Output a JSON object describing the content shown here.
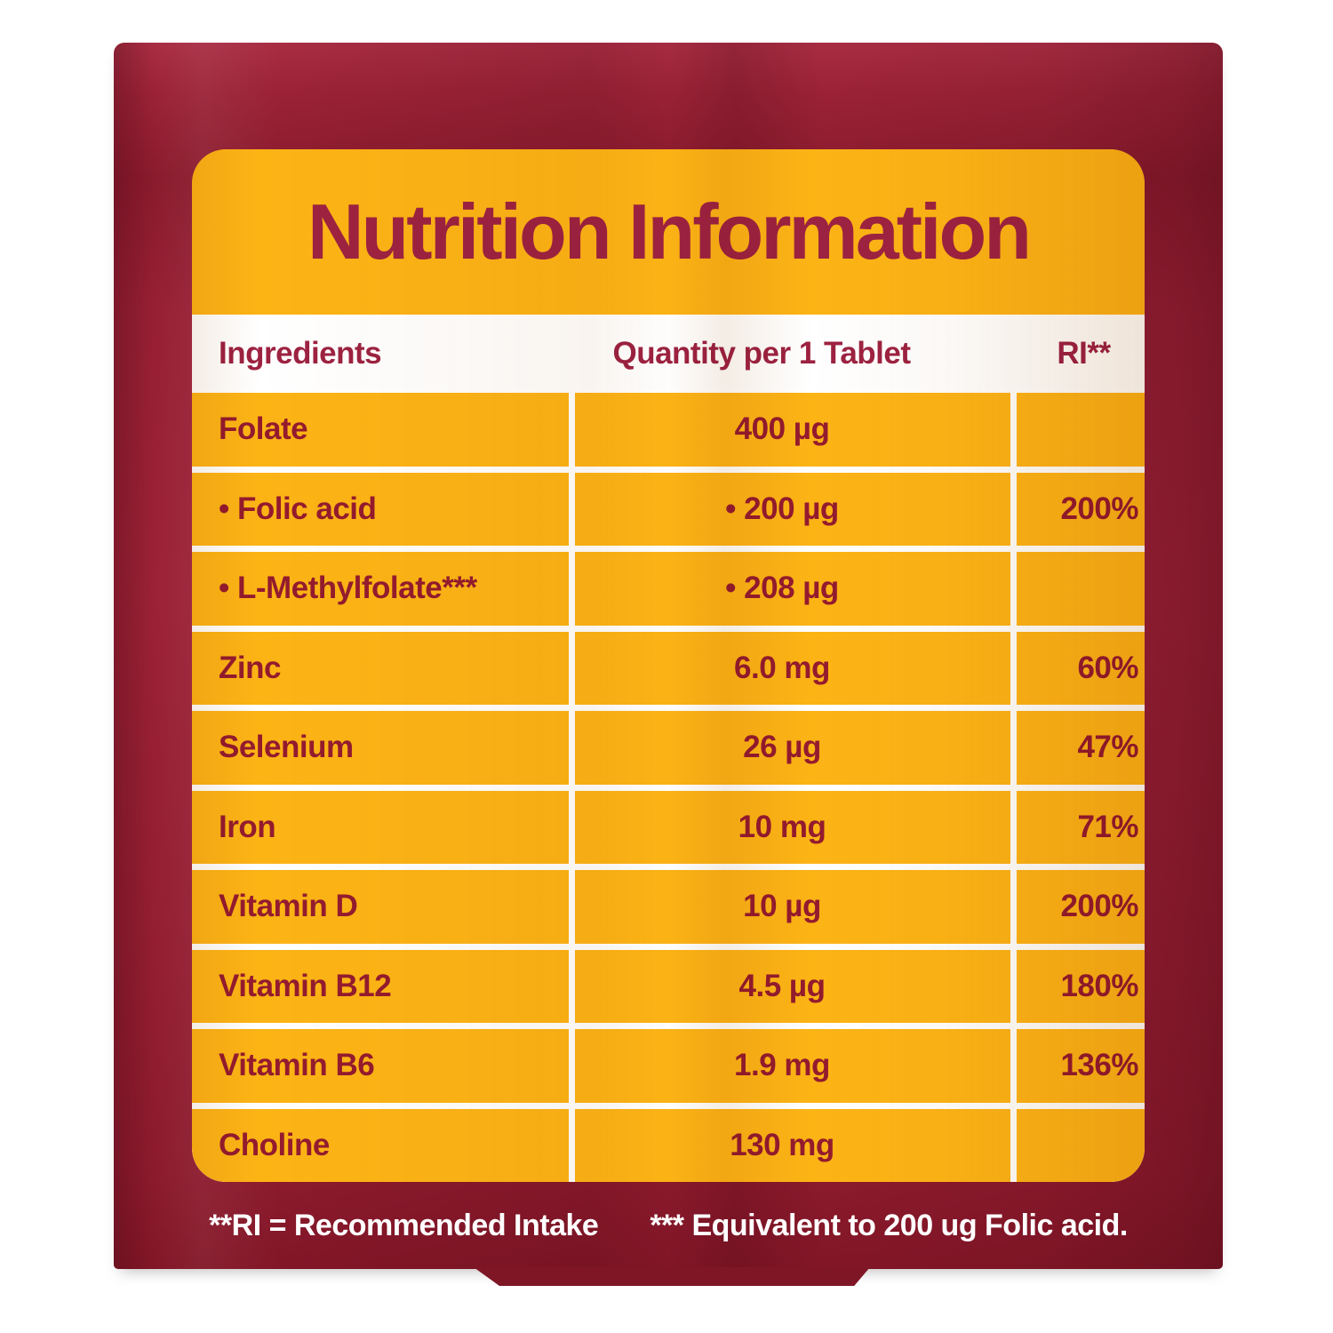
{
  "label": {
    "title": "Nutrition Information",
    "table": {
      "headers": {
        "ingredients": "Ingredients",
        "quantity": "Quantity per 1 Tablet",
        "ri": "RI**"
      },
      "rows": [
        {
          "ingredient": "Folate",
          "quantity": "400 µg",
          "ri": ""
        },
        {
          "ingredient": "• Folic acid",
          "quantity": "• 200 µg",
          "ri": "200%"
        },
        {
          "ingredient": "• L-Methylfolate***",
          "quantity": "• 208 µg",
          "ri": ""
        },
        {
          "ingredient": "Zinc",
          "quantity": "6.0 mg",
          "ri": "60%"
        },
        {
          "ingredient": "Selenium",
          "quantity": "26 µg",
          "ri": "47%"
        },
        {
          "ingredient": "Iron",
          "quantity": "10 mg",
          "ri": "71%"
        },
        {
          "ingredient": "Vitamin D",
          "quantity": "10 µg",
          "ri": "200%"
        },
        {
          "ingredient": "Vitamin B12",
          "quantity": "4.5 µg",
          "ri": "180%"
        },
        {
          "ingredient": "Vitamin B6",
          "quantity": "1.9 mg",
          "ri": "136%"
        },
        {
          "ingredient": "Choline",
          "quantity": "130 mg",
          "ri": ""
        }
      ]
    },
    "footnotes": {
      "ri_definition": "**RI = Recommended Intake",
      "equivalence": "*** Equivalent to 200 ug Folic acid."
    },
    "colors": {
      "panel_red": "#9b2136",
      "card_yellow": "#fcb415",
      "text_maroon": "#941b2e",
      "title_maroon": "#9d2241",
      "divider_white": "#ffffff"
    }
  }
}
